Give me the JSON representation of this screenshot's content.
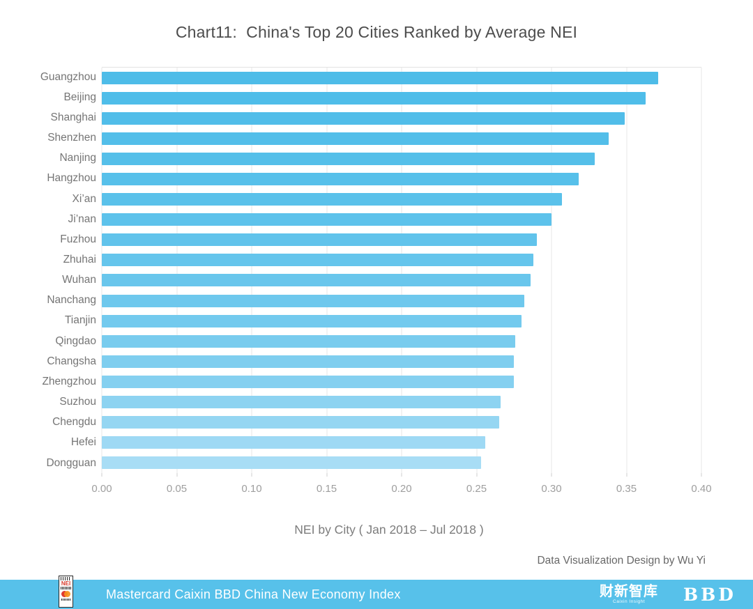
{
  "credit": "Data Visualization Design by Wu Yi",
  "footer": {
    "text": "Mastercard Caixin BBD China New Economy Index",
    "background": "#57c1ea",
    "nei_logo": "NEI",
    "caixin_logo": "财新智库",
    "caixin_logo_sub": "Caixin Insight",
    "bbd_logo": "BBD"
  },
  "chart_data": {
    "type": "bar",
    "orientation": "horizontal",
    "title": "Chart11:  China's Top 20 Cities Ranked by Average NEI",
    "xlabel": "NEI by City ( Jan 2018 – Jul 2018 )",
    "categories": [
      "Guangzhou",
      "Beijing",
      "Shanghai",
      "Shenzhen",
      "Nanjing",
      "Hangzhou",
      "Xi’an",
      "Ji’nan",
      "Fuzhou",
      "Zhuhai",
      "Wuhan",
      "Nanchang",
      "Tianjin",
      "Qingdao",
      "Changsha",
      "Zhengzhou",
      "Suzhou",
      "Chengdu",
      "Hefei",
      "Dongguan"
    ],
    "values": [
      0.371,
      0.363,
      0.349,
      0.338,
      0.329,
      0.318,
      0.307,
      0.3,
      0.29,
      0.288,
      0.286,
      0.282,
      0.28,
      0.276,
      0.275,
      0.275,
      0.266,
      0.265,
      0.256,
      0.253
    ],
    "xlim": [
      0,
      0.4
    ],
    "x_ticks": [
      "0.00",
      "0.05",
      "0.10",
      "0.15",
      "0.20",
      "0.25",
      "0.30",
      "0.35",
      "0.40"
    ],
    "grid": true,
    "legend": "none",
    "bar_colors": [
      "#4ebce8",
      "#4fbde9",
      "#51bde9",
      "#53bee9",
      "#55bfe9",
      "#57c0ea",
      "#5ac1ea",
      "#5dc2eb",
      "#61c3eb",
      "#65c5ec",
      "#69c6ec",
      "#6ec8ed",
      "#73caee",
      "#79ccee",
      "#7fceef",
      "#85d0f0",
      "#8dd3f1",
      "#95d6f2",
      "#9ed9f4",
      "#a8ddf5"
    ]
  }
}
